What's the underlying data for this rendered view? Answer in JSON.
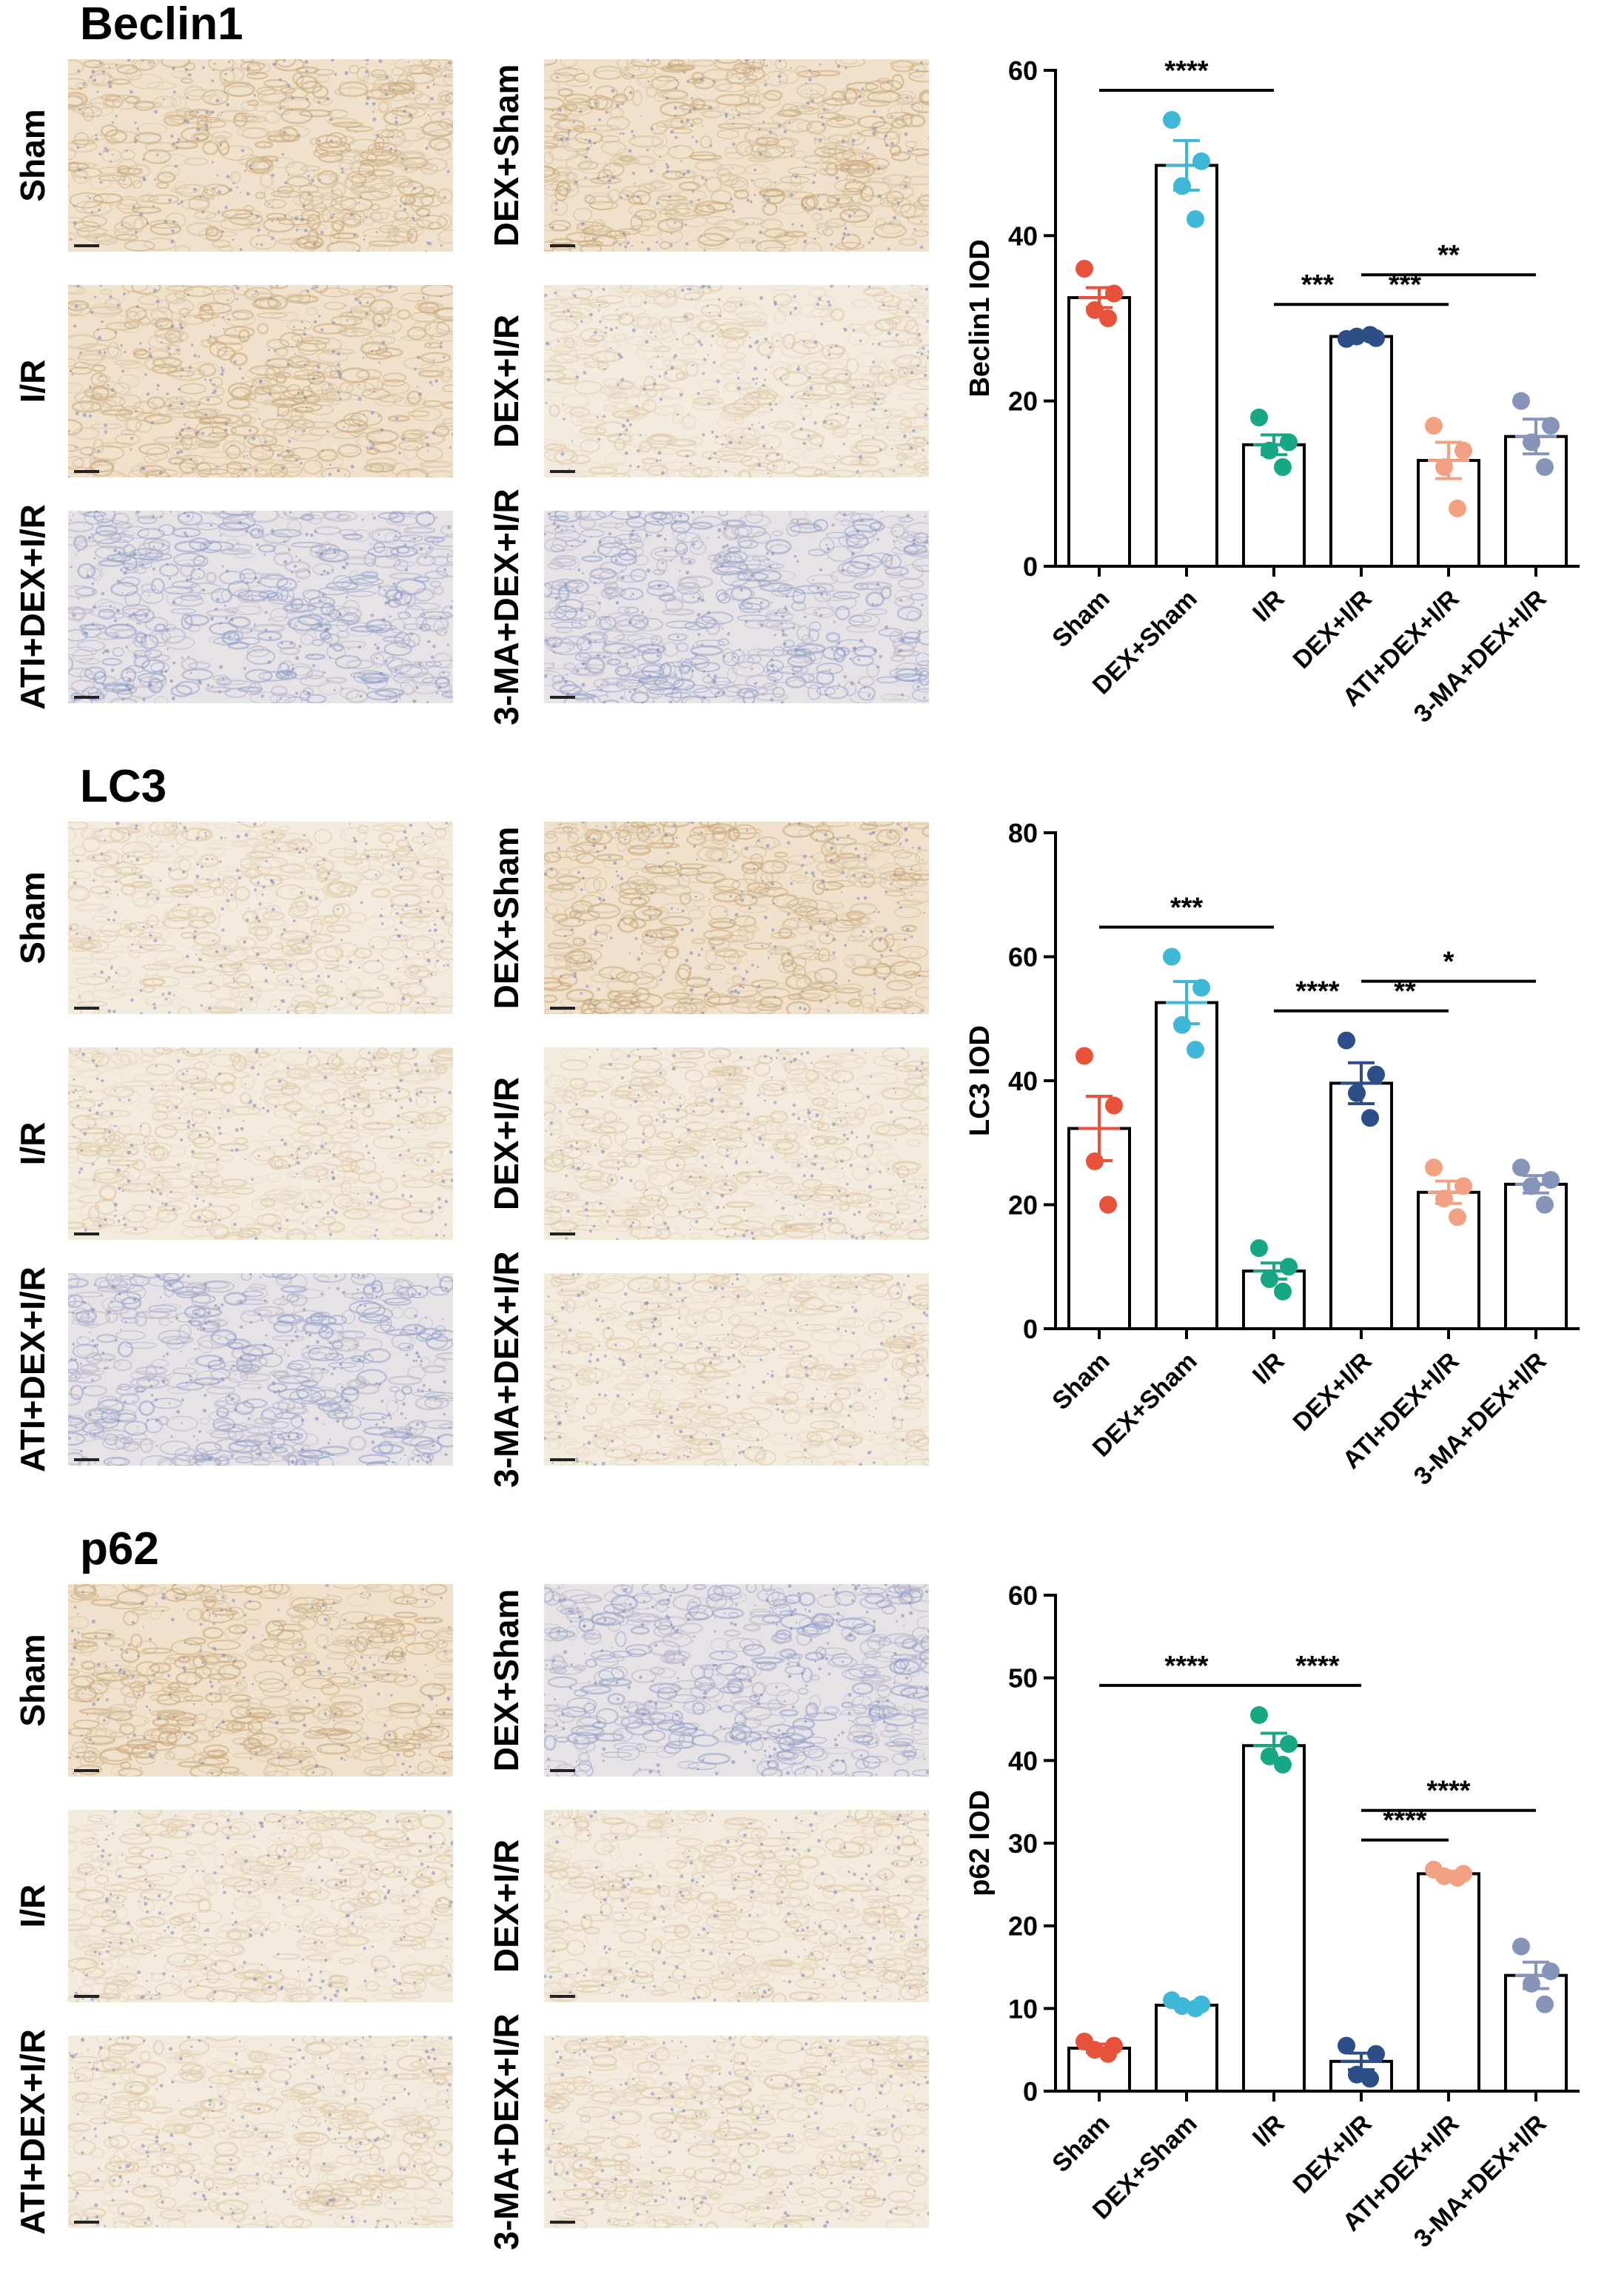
{
  "colors": {
    "tissue_base": "#f0e6d8",
    "tissue_brown": "#c9a679",
    "tissue_blue": "#8fa0c8",
    "series": [
      "#e8513a",
      "#3fb7d6",
      "#17a785",
      "#2c4d86",
      "#f3a183",
      "#8794ba"
    ]
  },
  "panels": [
    {
      "title": "Beclin1",
      "tissue_labels": {
        "left": [
          "Sham",
          "I/R",
          "ATI+DEX+I/R"
        ],
        "right": [
          "DEX+Sham",
          "DEX+I/R",
          "3-MA+DEX+I/R"
        ]
      },
      "tissue_tones": [
        "brown",
        "brown",
        "blue",
        "brown",
        "light",
        "blue"
      ],
      "chart_data": {
        "type": "bar",
        "categories": [
          "Sham",
          "DEX+Sham",
          "I/R",
          "DEX+I/R",
          "ATI+DEX+I/R",
          "3-MA+DEX+I/R"
        ],
        "values": [
          32.5,
          48.5,
          14.7,
          27.8,
          12.8,
          15.7
        ],
        "sem": [
          1.2,
          3.0,
          1.2,
          0.3,
          2.2,
          2.1
        ],
        "points": [
          [
            36,
            33,
            31,
            30
          ],
          [
            54,
            49,
            46,
            42
          ],
          [
            18,
            15,
            14,
            12
          ],
          [
            27.5,
            27.6,
            27.8,
            28
          ],
          [
            17,
            14,
            12,
            7
          ],
          [
            20,
            17,
            15,
            12
          ]
        ],
        "ylabel": "Beclin1 IOD",
        "ylim": [
          0,
          60
        ],
        "yticks": [
          "0",
          "20",
          "40",
          "60"
        ],
        "significance": [
          {
            "from": 0,
            "to": 2,
            "label": "****"
          },
          {
            "from": 2,
            "to": 3,
            "label": "***"
          },
          {
            "from": 3,
            "to": 4,
            "label": "***"
          },
          {
            "from": 3,
            "to": 5,
            "label": "**"
          }
        ]
      }
    },
    {
      "title": "LC3",
      "tissue_labels": {
        "left": [
          "Sham",
          "I/R",
          "ATI+DEX+I/R"
        ],
        "right": [
          "DEX+Sham",
          "DEX+I/R",
          "3-MA+DEX+I/R"
        ]
      },
      "tissue_tones": [
        "light",
        "light",
        "blue",
        "brown",
        "light",
        "light"
      ],
      "chart_data": {
        "type": "bar",
        "categories": [
          "Sham",
          "DEX+Sham",
          "I/R",
          "DEX+I/R",
          "ATI+DEX+I/R",
          "3-MA+DEX+I/R"
        ],
        "values": [
          32.3,
          52.6,
          9.3,
          39.6,
          22.0,
          23.3
        ],
        "sem": [
          5.2,
          3.4,
          1.3,
          3.3,
          1.8,
          1.4
        ],
        "points": [
          [
            44,
            36,
            27,
            20
          ],
          [
            60,
            55,
            49,
            45
          ],
          [
            13,
            10,
            8,
            6
          ],
          [
            46.5,
            41,
            38,
            34
          ],
          [
            26,
            23,
            21,
            18
          ],
          [
            26,
            24,
            23,
            20
          ]
        ],
        "ylabel": "LC3 IOD",
        "ylim": [
          0,
          80
        ],
        "yticks": [
          "0",
          "20",
          "40",
          "60",
          "80"
        ],
        "significance": [
          {
            "from": 0,
            "to": 2,
            "label": "***"
          },
          {
            "from": 2,
            "to": 3,
            "label": "****"
          },
          {
            "from": 3,
            "to": 4,
            "label": "**"
          },
          {
            "from": 3,
            "to": 5,
            "label": "*"
          }
        ]
      }
    },
    {
      "title": "p62",
      "tissue_labels": {
        "left": [
          "Sham",
          "I/R",
          "ATI+DEX+I/R"
        ],
        "right": [
          "DEX+Sham",
          "DEX+I/R",
          "3-MA+DEX+I/R"
        ]
      },
      "tissue_tones": [
        "brown",
        "light",
        "light",
        "blue",
        "light",
        "light"
      ],
      "chart_data": {
        "type": "bar",
        "categories": [
          "Sham",
          "DEX+Sham",
          "I/R",
          "DEX+I/R",
          "ATI+DEX+I/R",
          "3-MA+DEX+I/R"
        ],
        "values": [
          5.2,
          10.4,
          41.8,
          3.6,
          26.3,
          14.0
        ],
        "sem": [
          0.5,
          0.3,
          1.5,
          1.0,
          0.3,
          1.6
        ],
        "points": [
          [
            6,
            5.5,
            5,
            4.5
          ],
          [
            11,
            10.5,
            10.3,
            10
          ],
          [
            45.5,
            42,
            40.5,
            39.5
          ],
          [
            5.5,
            4.5,
            2,
            1.5
          ],
          [
            26.8,
            26.3,
            26,
            25.8
          ],
          [
            17.5,
            14.5,
            13,
            10.5
          ]
        ],
        "ylabel": "p62 IOD",
        "ylim": [
          0,
          60
        ],
        "yticks": [
          "0",
          "10",
          "20",
          "30",
          "40",
          "50",
          "60"
        ],
        "significance": [
          {
            "from": 0,
            "to": 2,
            "label": "****"
          },
          {
            "from": 2,
            "to": 3,
            "label": "****"
          },
          {
            "from": 3,
            "to": 4,
            "label": "****"
          },
          {
            "from": 3,
            "to": 5,
            "label": "****"
          }
        ]
      }
    }
  ]
}
